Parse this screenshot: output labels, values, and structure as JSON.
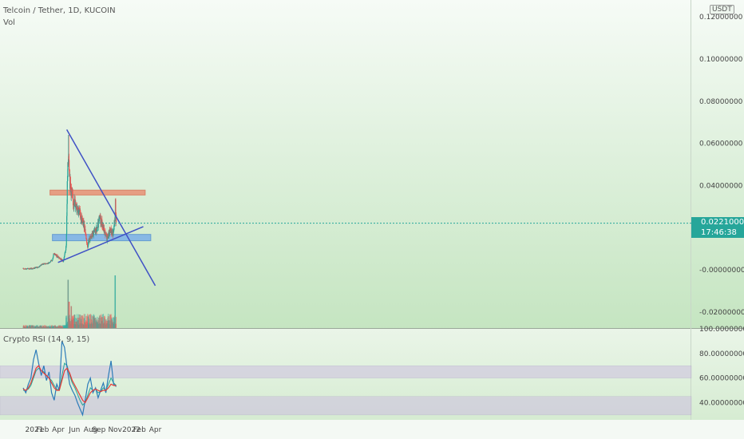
{
  "header": {
    "symbol_line": "Telcoin / Tether, 1D, KUCOIN",
    "volume_label": "Vol",
    "currency": "USDT"
  },
  "price_badge": {
    "price": "0.02210000",
    "countdown": "17:46:38"
  },
  "rsi_panel": {
    "label": "Crypto RSI (14, 9, 15)"
  },
  "colors": {
    "background_top": "#f6fbf6",
    "background_bottom": "#c8e6c4",
    "candle_up": "#26a69a",
    "candle_down": "#ef5350",
    "trendline": "#3f51c5",
    "resistance_zone": "#e8967a",
    "support_zone": "#7fb3e8",
    "rsi_line": "#2b7bb9",
    "rsi_signal": "#e53935",
    "rsi_ma": "#26a69a",
    "rsi_band": "#cdbfe0"
  },
  "chart_data": {
    "type": "candlestick",
    "title": "Telcoin / Tether, 1D, KUCOIN",
    "price_axis": {
      "ticks": [
        "0.12000000",
        "0.10000000",
        "0.08000000",
        "0.06000000",
        "0.04000000",
        "-0.00000000",
        "-0.02000000"
      ],
      "tick_values": [
        0.12,
        0.1,
        0.08,
        0.06,
        0.04,
        0.0,
        -0.02
      ],
      "range": [
        -0.028,
        0.128
      ]
    },
    "time_axis": {
      "ticks": [
        "2021",
        "Feb",
        "Apr",
        "Jun",
        "Aug",
        "Sep",
        "Nov",
        "2022",
        "Feb",
        "Apr"
      ],
      "tick_dates": [
        "2021-01-01",
        "2021-02-01",
        "2021-04-01",
        "2021-06-01",
        "2021-08-01",
        "2021-09-01",
        "2021-11-01",
        "2022-01-01",
        "2022-02-01",
        "2022-04-01"
      ]
    },
    "price_series": {
      "name": "TELUSDT",
      "dates": [
        "2020-11-20",
        "2020-12-20",
        "2021-01-15",
        "2021-02-01",
        "2021-02-20",
        "2021-03-10",
        "2021-03-15",
        "2021-04-01",
        "2021-04-10",
        "2021-04-20",
        "2021-05-01",
        "2021-05-05",
        "2021-05-10",
        "2021-05-15",
        "2021-05-25",
        "2021-06-10",
        "2021-06-25",
        "2021-07-10",
        "2021-07-20",
        "2021-07-25",
        "2021-08-10",
        "2021-08-25",
        "2021-09-05",
        "2021-09-20",
        "2021-10-01",
        "2021-10-15",
        "2021-10-25",
        "2021-11-01",
        "2021-11-02",
        "2021-11-05"
      ],
      "close": [
        0.0005,
        0.0006,
        0.0012,
        0.0028,
        0.003,
        0.0045,
        0.008,
        0.006,
        0.005,
        0.004,
        0.011,
        0.04,
        0.058,
        0.042,
        0.033,
        0.031,
        0.025,
        0.02,
        0.011,
        0.014,
        0.017,
        0.019,
        0.025,
        0.019,
        0.015,
        0.019,
        0.017,
        0.026,
        0.033,
        0.0221
      ],
      "peak_high": 0.064
    },
    "volume_spikes": [
      {
        "date": "2021-05-08",
        "relative": 0.55
      },
      {
        "date": "2021-05-12",
        "relative": 0.3
      },
      {
        "date": "2021-05-20",
        "relative": 0.25
      },
      {
        "date": "2021-11-01",
        "relative": 0.6
      }
    ],
    "annotations": {
      "descending_trendline": [
        {
          "date": "2021-05-03",
          "price": 0.0665
        },
        {
          "date": "2022-04-01",
          "price": -0.0075
        }
      ],
      "ascending_trendline": [
        {
          "date": "2021-03-31",
          "price": 0.0035
        },
        {
          "date": "2022-02-15",
          "price": 0.0205
        }
      ],
      "resistance_zone": {
        "from": "2021-03-01",
        "to": "2022-02-22",
        "price_low": 0.0355,
        "price_high": 0.0378
      },
      "support_zone": {
        "from": "2021-03-10",
        "to": "2022-03-15",
        "price_low": 0.0138,
        "price_high": 0.0168
      }
    },
    "rsi": {
      "title": "Crypto RSI (14, 9, 15)",
      "ticks": [
        "100.00000000",
        "80.00000000",
        "60.00000000",
        "40.00000000"
      ],
      "tick_values": [
        100,
        80,
        60,
        40
      ],
      "range": [
        26,
        100
      ],
      "bands": [
        {
          "low": 60,
          "high": 70
        },
        {
          "low": 30,
          "high": 45
        }
      ],
      "rsi_values": [
        52,
        48,
        55,
        60,
        75,
        83,
        72,
        62,
        70,
        58,
        65,
        48,
        42,
        55,
        50,
        90,
        85,
        68,
        55,
        50,
        46,
        40,
        35,
        30,
        42,
        55,
        60,
        48,
        52,
        44,
        50,
        56,
        48,
        62,
        74,
        55,
        53
      ],
      "signal_values": [
        51,
        50,
        52,
        56,
        62,
        68,
        70,
        66,
        64,
        62,
        60,
        56,
        52,
        50,
        50,
        58,
        66,
        68,
        64,
        58,
        54,
        50,
        46,
        42,
        40,
        44,
        48,
        50,
        51,
        50,
        49,
        50,
        50,
        52,
        55,
        54,
        54
      ],
      "ma_values": [
        50,
        50,
        51,
        54,
        60,
        66,
        68,
        66,
        65,
        62,
        60,
        58,
        54,
        51,
        50,
        62,
        72,
        70,
        62,
        56,
        52,
        47,
        42,
        38,
        40,
        46,
        52,
        50,
        51,
        48,
        49,
        52,
        50,
        55,
        60,
        56,
        54
      ]
    }
  }
}
